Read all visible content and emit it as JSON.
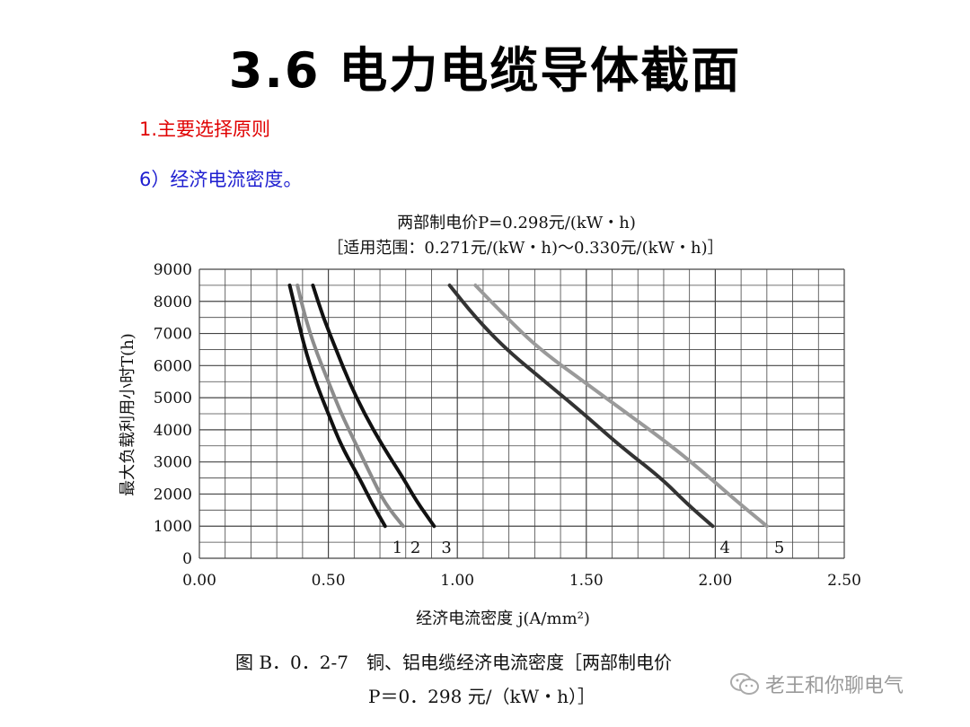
{
  "slide": {
    "title": "3.6 电力电缆导体截面",
    "subtitle": "1.主要选择原则",
    "bullet": "6）经济电流密度。"
  },
  "caption": {
    "line1": "图 B．0．2-7　铜、铝电缆经济电流密度［两部制电价",
    "line2": "P＝0．298 元/（kW・h）］"
  },
  "watermark": {
    "text": "老王和你聊电气",
    "icon": "wechat-icon"
  },
  "chart_data": {
    "type": "line",
    "title": "两部制电价P=0.298元/(kW・h)",
    "subtitle": "［适用范围：0.271元/(kW・h)～0.330元/(kW・h)］",
    "xlabel": "经济电流密度 j(A/mm²)",
    "ylabel": "最大负载利用小时T(h)",
    "xlim": [
      0,
      2.5
    ],
    "ylim": [
      0,
      9000
    ],
    "xticks": [
      "0.00",
      "0.50",
      "1.00",
      "1.50",
      "2.00",
      "2.50"
    ],
    "yticks": [
      "0",
      "1000",
      "2000",
      "3000",
      "4000",
      "5000",
      "6000",
      "7000",
      "8000",
      "9000"
    ],
    "grid": true,
    "series": [
      {
        "name": "1",
        "color": "#111111",
        "points": [
          [
            0.35,
            8500
          ],
          [
            0.38,
            7500
          ],
          [
            0.41,
            6500
          ],
          [
            0.45,
            5500
          ],
          [
            0.5,
            4500
          ],
          [
            0.55,
            3500
          ],
          [
            0.62,
            2500
          ],
          [
            0.67,
            1700
          ],
          [
            0.72,
            1000
          ]
        ]
      },
      {
        "name": "2",
        "color": "#8c8c8c",
        "points": [
          [
            0.38,
            8500
          ],
          [
            0.41,
            7500
          ],
          [
            0.45,
            6500
          ],
          [
            0.5,
            5500
          ],
          [
            0.55,
            4500
          ],
          [
            0.61,
            3500
          ],
          [
            0.67,
            2500
          ],
          [
            0.72,
            1700
          ],
          [
            0.79,
            1000
          ]
        ]
      },
      {
        "name": "3",
        "color": "#111111",
        "points": [
          [
            0.44,
            8500
          ],
          [
            0.48,
            7500
          ],
          [
            0.53,
            6500
          ],
          [
            0.58,
            5500
          ],
          [
            0.64,
            4500
          ],
          [
            0.71,
            3500
          ],
          [
            0.79,
            2500
          ],
          [
            0.84,
            1800
          ],
          [
            0.91,
            1000
          ]
        ]
      },
      {
        "name": "4",
        "color": "#333333",
        "points": [
          [
            0.97,
            8500
          ],
          [
            1.07,
            7500
          ],
          [
            1.19,
            6500
          ],
          [
            1.34,
            5500
          ],
          [
            1.49,
            4500
          ],
          [
            1.63,
            3500
          ],
          [
            1.79,
            2500
          ],
          [
            1.89,
            1700
          ],
          [
            1.99,
            1000
          ]
        ]
      },
      {
        "name": "5",
        "color": "#9a9a9a",
        "points": [
          [
            1.07,
            8500
          ],
          [
            1.19,
            7500
          ],
          [
            1.32,
            6500
          ],
          [
            1.49,
            5500
          ],
          [
            1.66,
            4500
          ],
          [
            1.83,
            3500
          ],
          [
            1.98,
            2500
          ],
          [
            2.08,
            1800
          ],
          [
            2.2,
            1000
          ]
        ]
      }
    ]
  }
}
